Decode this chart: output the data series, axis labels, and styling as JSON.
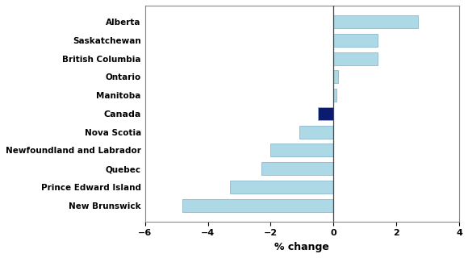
{
  "categories": [
    "New Brunswick",
    "Prince Edward Island",
    "Quebec",
    "Newfoundland and Labrador",
    "Nova Scotia",
    "Canada",
    "Manitoba",
    "Ontario",
    "British Columbia",
    "Saskatchewan",
    "Alberta"
  ],
  "values": [
    -4.8,
    -3.3,
    -2.3,
    -2.0,
    -1.1,
    -0.5,
    0.1,
    0.15,
    1.4,
    1.4,
    2.7
  ],
  "colors": [
    "#add8e6",
    "#add8e6",
    "#add8e6",
    "#add8e6",
    "#add8e6",
    "#0d1b6e",
    "#add8e6",
    "#add8e6",
    "#add8e6",
    "#add8e6",
    "#add8e6"
  ],
  "xlabel": "% change",
  "xlim": [
    -6,
    4
  ],
  "xticks": [
    -6,
    -4,
    -2,
    0,
    2,
    4
  ],
  "bar_edgecolor": "#8bb8d0",
  "background_color": "#ffffff",
  "label_fontsize": 7.5,
  "tick_fontsize": 8,
  "xlabel_fontsize": 9,
  "canada_index": 5
}
